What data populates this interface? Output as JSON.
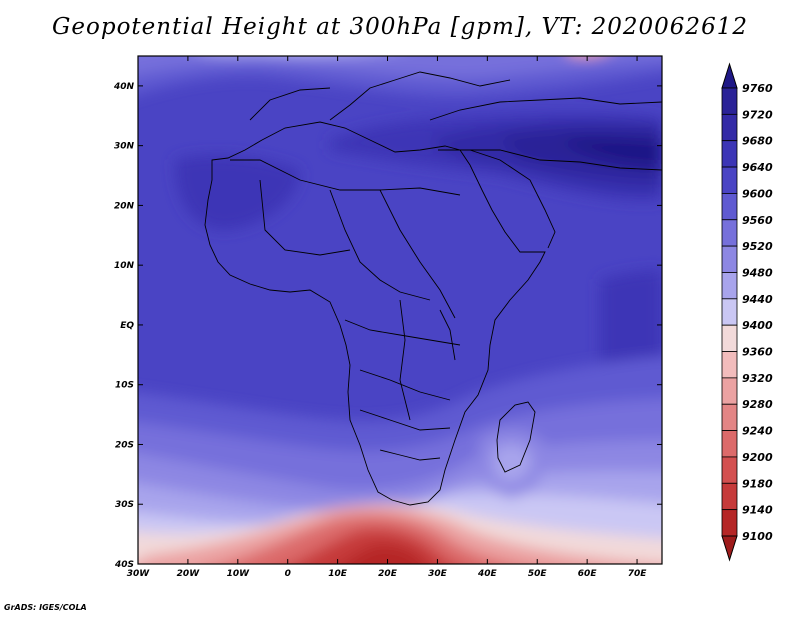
{
  "title": "Geopotential Height at 300hPa [gpm], VT: 2020062612",
  "footer": "GrADS: IGES/COLA",
  "axes": {
    "lat_labels": [
      "40N",
      "30N",
      "20N",
      "10N",
      "EQ",
      "10S",
      "20S",
      "30S",
      "40S"
    ],
    "lon_labels": [
      "30W",
      "20W",
      "10W",
      "0",
      "10E",
      "20E",
      "30E",
      "40E",
      "50E",
      "60E",
      "70E"
    ],
    "lat_range": [
      -40,
      45
    ],
    "lon_range": [
      -30,
      75
    ]
  },
  "colorbar": {
    "levels": [
      9760,
      9720,
      9680,
      9640,
      9600,
      9560,
      9520,
      9480,
      9440,
      9400,
      9360,
      9320,
      9280,
      9240,
      9200,
      9180,
      9140,
      9100
    ],
    "colors": [
      "#1f1886",
      "#2a2297",
      "#332aa6",
      "#3c35b6",
      "#4a44c4",
      "#5f5ad1",
      "#7670db",
      "#8d87e3",
      "#a8a4ec",
      "#cac7f4",
      "#f2dada",
      "#f2bcbc",
      "#eba2a2",
      "#e38585",
      "#dc6a6a",
      "#d35050",
      "#c63a3a",
      "#b52626",
      "#9e1b1b"
    ]
  }
}
